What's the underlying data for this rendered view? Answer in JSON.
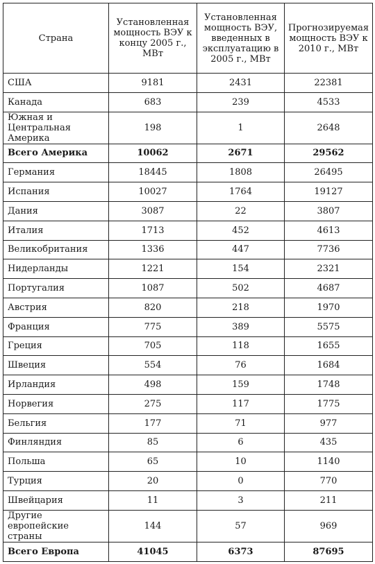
{
  "headers": [
    "Страна",
    "Установленная мощность ВЭУ к концу 2005 г., МВт",
    "Установленная мощность ВЭУ, введенных в эксплуатацию в 2005 г., МВт",
    "Прогнозируемая мощность ВЭУ к 2010 г., МВт"
  ],
  "rows": [
    {
      "country": "США",
      "installed_2005": "9181",
      "added_2005": "2431",
      "forecast_2010": "22381"
    },
    {
      "country": "Канада",
      "installed_2005": "683",
      "added_2005": "239",
      "forecast_2010": "4533"
    },
    {
      "country": "Южная и Центральная Америка",
      "installed_2005": "198",
      "added_2005": "1",
      "forecast_2010": "2648"
    },
    {
      "country": "Всего Америка",
      "installed_2005": "10062",
      "added_2005": "2671",
      "forecast_2010": "29562",
      "total": true
    },
    {
      "country": "Германия",
      "installed_2005": "18445",
      "added_2005": "1808",
      "forecast_2010": "26495"
    },
    {
      "country": "Испания",
      "installed_2005": "10027",
      "added_2005": "1764",
      "forecast_2010": "19127"
    },
    {
      "country": "Дания",
      "installed_2005": "3087",
      "added_2005": "22",
      "forecast_2010": "3807"
    },
    {
      "country": "Италия",
      "installed_2005": "1713",
      "added_2005": "452",
      "forecast_2010": "4613"
    },
    {
      "country": "Великобритания",
      "installed_2005": "1336",
      "added_2005": "447",
      "forecast_2010": "7736"
    },
    {
      "country": "Нидерланды",
      "installed_2005": "1221",
      "added_2005": "154",
      "forecast_2010": "2321"
    },
    {
      "country": "Португалия",
      "installed_2005": "1087",
      "added_2005": "502",
      "forecast_2010": "4687"
    },
    {
      "country": "Австрия",
      "installed_2005": "820",
      "added_2005": "218",
      "forecast_2010": "1970"
    },
    {
      "country": "Франция",
      "installed_2005": "775",
      "added_2005": "389",
      "forecast_2010": "5575"
    },
    {
      "country": "Греция",
      "installed_2005": "705",
      "added_2005": "118",
      "forecast_2010": "1655"
    },
    {
      "country": "Швеция",
      "installed_2005": "554",
      "added_2005": "76",
      "forecast_2010": "1684"
    },
    {
      "country": "Ирландия",
      "installed_2005": "498",
      "added_2005": "159",
      "forecast_2010": "1748"
    },
    {
      "country": "Норвегия",
      "installed_2005": "275",
      "added_2005": "117",
      "forecast_2010": "1775"
    },
    {
      "country": "Бельгия",
      "installed_2005": "177",
      "added_2005": "71",
      "forecast_2010": "977"
    },
    {
      "country": "Финляндия",
      "installed_2005": "85",
      "added_2005": "6",
      "forecast_2010": "435"
    },
    {
      "country": "Польша",
      "installed_2005": "65",
      "added_2005": "10",
      "forecast_2010": "1140"
    },
    {
      "country": "Турция",
      "installed_2005": "20",
      "added_2005": "0",
      "forecast_2010": "770"
    },
    {
      "country": "Швейцария",
      "installed_2005": "11",
      "added_2005": "3",
      "forecast_2010": "211"
    },
    {
      "country": "Другие европейские страны",
      "installed_2005": "144",
      "added_2005": "57",
      "forecast_2010": "969"
    },
    {
      "country": "Всего Европа",
      "installed_2005": "41045",
      "added_2005": "6373",
      "forecast_2010": "87695",
      "total": true
    }
  ]
}
